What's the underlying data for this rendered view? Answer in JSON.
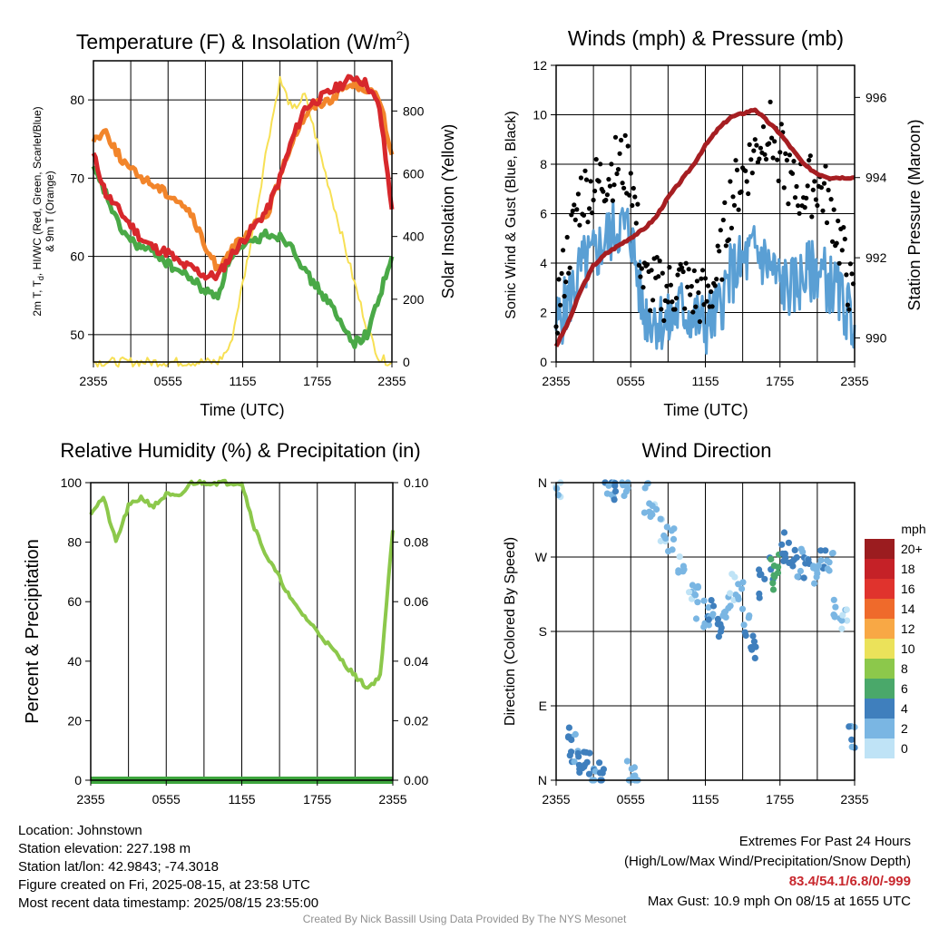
{
  "colors": {
    "temp": "#d7282c",
    "dewpoint": "#4aa947",
    "heat_index": "#4aa947",
    "temp9m": "#f2852b",
    "solar": "#f7e054",
    "wind": "#5a9fd4",
    "gust": "#000000",
    "pressure": "#a61e22",
    "rh": "#8cc84b",
    "precip": "#3ea63e",
    "extremes": "#c8272d"
  },
  "x_ticks": [
    "2355",
    "0555",
    "1155",
    "1755",
    "2355"
  ],
  "panels": {
    "temp": {
      "title": "Temperature (F) & Insolation (W/m²)",
      "title_main": "Temperature (F) & Insolation (W/m",
      "title_sup": "2",
      "title_end": ")",
      "ylabel_lines": [
        "2m T, T",
        "d",
        ", HI/WC (Red, Green, Scarlet/Blue)",
        "& 9m T (Orange)"
      ],
      "ylabel_right": "Solar Insolation (Yellow)",
      "xlabel": "Time (UTC)",
      "yticks_left": [
        "50",
        "60",
        "70",
        "80"
      ],
      "yticks_right": [
        "0",
        "200",
        "400",
        "600",
        "800"
      ]
    },
    "wind": {
      "title": "Winds (mph) & Pressure (mb)",
      "ylabel_left": "Sonic Wind & Gust (Blue, Black)",
      "ylabel_right": "Station Pressure (Maroon)",
      "xlabel": "Time (UTC)",
      "yticks_left": [
        "0",
        "2",
        "4",
        "6",
        "8",
        "10",
        "12"
      ],
      "yticks_right": [
        "990",
        "992",
        "994",
        "996"
      ]
    },
    "rh": {
      "title": "Relative Humidity (%) & Precipitation (in)",
      "ylabel_left": "Percent & Precipitation",
      "yticks_left": [
        "0",
        "20",
        "40",
        "60",
        "80",
        "100"
      ],
      "yticks_right": [
        "0.00",
        "0.02",
        "0.04",
        "0.06",
        "0.08",
        "0.10"
      ]
    },
    "dir": {
      "title": "Wind Direction",
      "ylabel_left": "Direction (Colored By Speed)",
      "yticks_left": [
        "N",
        "E",
        "S",
        "W",
        "N"
      ],
      "legend_title": "mph",
      "legend_labels": [
        "20+",
        "18",
        "16",
        "14",
        "12",
        "10",
        "8",
        "6",
        "4",
        "2",
        "0"
      ],
      "legend_colors": [
        "#9b1c1f",
        "#c52127",
        "#e0332d",
        "#ef6a2b",
        "#f8a845",
        "#ebe25a",
        "#8cc84b",
        "#4aa86a",
        "#3f7fbd",
        "#7ab6e3",
        "#bfe3f6"
      ]
    }
  },
  "chart_data": [
    {
      "type": "line",
      "title": "Temperature (F) & Insolation (W/m²)",
      "xlabel": "Time (UTC)",
      "x": [
        0,
        1,
        2,
        3,
        4,
        5,
        6,
        7,
        8,
        9,
        10,
        11,
        12,
        13,
        14,
        15,
        16,
        17,
        18,
        19,
        20,
        21,
        22,
        23,
        24
      ],
      "ylim": [
        46.5,
        85
      ],
      "y2lim": [
        0,
        960
      ],
      "series": [
        {
          "name": "2m T (Red)",
          "axis": "left",
          "values": [
            73,
            68,
            66,
            64,
            62,
            61,
            60.5,
            59,
            58.5,
            57.5,
            57.5,
            60,
            62,
            64,
            66,
            70,
            75,
            79,
            80,
            81,
            82,
            83,
            82,
            79,
            66
          ]
        },
        {
          "name": "Td (Green)",
          "axis": "left",
          "values": [
            71,
            68,
            64,
            62,
            61,
            60.5,
            59,
            58,
            57,
            55.5,
            55,
            60,
            61,
            62,
            63,
            62.5,
            61.5,
            58,
            56,
            54,
            51,
            49,
            50,
            55,
            60
          ]
        },
        {
          "name": "9m T (Orange)",
          "axis": "left",
          "values": [
            75,
            76,
            73,
            71,
            70,
            69,
            68,
            67,
            65,
            61,
            58.5,
            61,
            62,
            64,
            65.5,
            70,
            75,
            78,
            79.5,
            80,
            81.5,
            82,
            81.5,
            80,
            73
          ]
        },
        {
          "name": "Solar Insolation (Yellow)",
          "axis": "right",
          "values": [
            0,
            0,
            0,
            0,
            0,
            0,
            0,
            0,
            0,
            0,
            0,
            50,
            250,
            450,
            700,
            900,
            800,
            850,
            700,
            550,
            400,
            250,
            110,
            10,
            0
          ]
        }
      ]
    },
    {
      "type": "line",
      "title": "Winds (mph) & Pressure (mb)",
      "xlabel": "Time (UTC)",
      "x": [
        0,
        1,
        2,
        3,
        4,
        5,
        6,
        7,
        8,
        9,
        10,
        11,
        12,
        13,
        14,
        15,
        16,
        17,
        18,
        19,
        20,
        21,
        22,
        23,
        24
      ],
      "ylim": [
        0,
        12
      ],
      "y2lim": [
        989.4,
        996.8
      ],
      "series": [
        {
          "name": "Sonic Wind (Blue)",
          "axis": "left",
          "values": [
            1.5,
            2.5,
            3.8,
            4.2,
            5.0,
            5.5,
            5.3,
            2.0,
            1.8,
            1.5,
            2.2,
            1.8,
            1.5,
            2.0,
            3.5,
            4.0,
            4.5,
            4.0,
            3.2,
            3.0,
            3.5,
            3.8,
            3.2,
            2.5,
            1.5
          ]
        },
        {
          "name": "Gust (Black)",
          "axis": "left",
          "values": [
            2.0,
            4.5,
            6.8,
            7.0,
            7.5,
            8.0,
            7.8,
            3.2,
            3.0,
            2.8,
            3.2,
            2.8,
            2.5,
            3.5,
            6.5,
            7.5,
            8.5,
            9.5,
            8.5,
            7.0,
            7.0,
            7.2,
            6.5,
            4.5,
            2.0
          ]
        },
        {
          "name": "Station Pressure (Maroon)",
          "axis": "right",
          "values": [
            989.8,
            990.4,
            991.2,
            991.8,
            992.1,
            992.3,
            992.5,
            992.7,
            993.0,
            993.5,
            993.9,
            994.3,
            994.8,
            995.2,
            995.5,
            995.6,
            995.7,
            995.4,
            995.1,
            994.7,
            994.3,
            994.1,
            994.0,
            994.0,
            994.0
          ]
        }
      ]
    },
    {
      "type": "line",
      "title": "Relative Humidity (%) & Precipitation (in)",
      "x": [
        0,
        1,
        2,
        3,
        4,
        5,
        6,
        7,
        8,
        9,
        10,
        11,
        12,
        13,
        14,
        15,
        16,
        17,
        18,
        19,
        20,
        21,
        22,
        23,
        24
      ],
      "ylim": [
        0,
        100
      ],
      "y2lim": [
        0,
        0.1
      ],
      "series": [
        {
          "name": "Relative Humidity",
          "axis": "left",
          "values": [
            90,
            95,
            80,
            92,
            95,
            92,
            96,
            95,
            100,
            100,
            100,
            100,
            100,
            85,
            75,
            68,
            60,
            55,
            50,
            45,
            40,
            35,
            31,
            35,
            84
          ]
        },
        {
          "name": "Precipitation",
          "axis": "right",
          "values": [
            0,
            0,
            0,
            0,
            0,
            0,
            0,
            0,
            0,
            0,
            0,
            0,
            0,
            0,
            0,
            0,
            0,
            0,
            0,
            0,
            0,
            0,
            0,
            0,
            0
          ]
        }
      ]
    },
    {
      "type": "scatter",
      "title": "Wind Direction",
      "ylabel": "Direction (Colored By Speed)",
      "x": [
        0.2,
        1.0,
        1.5,
        2.0,
        2.5,
        3.0,
        3.6,
        4.2,
        4.8,
        5.5,
        6.0,
        6.5,
        7.2,
        7.8,
        8.5,
        9.2,
        10.0,
        10.8,
        11.5,
        12.0,
        12.5,
        13.0,
        13.6,
        14.2,
        14.8,
        15.4,
        16.0,
        16.6,
        17.2,
        17.8,
        18.4,
        19.0,
        19.6,
        20.2,
        20.8,
        21.4,
        22.0,
        22.6,
        23.2,
        23.8
      ],
      "values": [
        355,
        45,
        40,
        20,
        15,
        5,
        2,
        358,
        357,
        359,
        5,
        3,
        340,
        320,
        300,
        290,
        260,
        220,
        215,
        200,
        205,
        190,
        210,
        230,
        220,
        180,
        165,
        240,
        250,
        265,
        280,
        275,
        260,
        250,
        245,
        270,
        255,
        210,
        190,
        50
      ],
      "speeds": [
        1,
        3,
        3,
        4,
        4,
        3,
        4,
        3,
        3,
        2,
        2,
        2,
        2,
        1,
        1,
        2,
        1,
        1,
        2,
        3,
        3,
        4,
        2,
        1,
        2,
        3,
        4,
        4,
        5,
        6,
        4,
        4,
        3,
        3,
        2,
        3,
        2,
        2,
        1,
        3
      ],
      "ylim": [
        0,
        360
      ],
      "color_scale": {
        "min": 0,
        "max": 20,
        "label": "mph"
      }
    }
  ],
  "footer": {
    "location": "Location: Johnstown",
    "elevation": "Station elevation: 227.198 m",
    "latlon": "Station lat/lon: 42.9843; -74.3018",
    "created": "Figure created on Fri, 2025-08-15, at 23:58 UTC",
    "recent": "Most recent data timestamp: 2025/08/15 23:55:00",
    "ext_title": "Extremes For Past 24 Hours",
    "ext_sub": "(High/Low/Max Wind/Precipitation/Snow Depth)",
    "ext_values": "83.4/54.1/6.8/0/-999",
    "max_gust": "Max Gust: 10.9 mph On 08/15 at 1655 UTC",
    "credit": "Created By Nick Bassill Using Data Provided By The NYS Mesonet"
  }
}
